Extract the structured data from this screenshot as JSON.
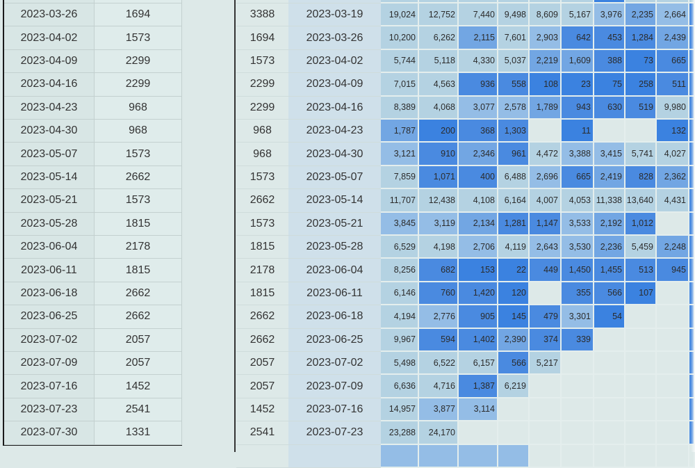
{
  "left_table": {
    "rows": [
      {
        "date": "2023-03-26",
        "value": "1694"
      },
      {
        "date": "2023-04-02",
        "value": "1573"
      },
      {
        "date": "2023-04-09",
        "value": "2299"
      },
      {
        "date": "2023-04-16",
        "value": "2299"
      },
      {
        "date": "2023-04-23",
        "value": "968"
      },
      {
        "date": "2023-04-30",
        "value": "968"
      },
      {
        "date": "2023-05-07",
        "value": "1573"
      },
      {
        "date": "2023-05-14",
        "value": "2662"
      },
      {
        "date": "2023-05-21",
        "value": "1573"
      },
      {
        "date": "2023-05-28",
        "value": "1815"
      },
      {
        "date": "2023-06-04",
        "value": "2178"
      },
      {
        "date": "2023-06-11",
        "value": "1815"
      },
      {
        "date": "2023-06-18",
        "value": "2662"
      },
      {
        "date": "2023-06-25",
        "value": "2662"
      },
      {
        "date": "2023-07-02",
        "value": "2057"
      },
      {
        "date": "2023-07-09",
        "value": "2057"
      },
      {
        "date": "2023-07-16",
        "value": "1452"
      },
      {
        "date": "2023-07-23",
        "value": "2541"
      },
      {
        "date": "2023-07-30",
        "value": "1331"
      }
    ]
  },
  "heat_colors": {
    "lightest": "#b4d2e2",
    "light": "#94bde6",
    "medium": "#72a6e3",
    "dark": "#4a8ae0",
    "darkest": "#3b82e0",
    "empty": "#dde9e8"
  },
  "right_table": {
    "rows": [
      {
        "count": "3388",
        "date": "2023-03-19",
        "cells": [
          "19,024",
          "12,752",
          "7,440",
          "9,498",
          "8,609",
          "5,167",
          "3,976",
          "2,235",
          "2,664"
        ]
      },
      {
        "count": "1694",
        "date": "2023-03-26",
        "cells": [
          "10,200",
          "6,262",
          "2,115",
          "7,601",
          "2,903",
          "642",
          "453",
          "1,284",
          "2,439"
        ]
      },
      {
        "count": "1573",
        "date": "2023-04-02",
        "cells": [
          "5,744",
          "5,118",
          "4,330",
          "5,037",
          "2,219",
          "1,609",
          "388",
          "73",
          "665"
        ]
      },
      {
        "count": "2299",
        "date": "2023-04-09",
        "cells": [
          "7,015",
          "4,563",
          "936",
          "558",
          "108",
          "23",
          "75",
          "258",
          "511"
        ]
      },
      {
        "count": "2299",
        "date": "2023-04-16",
        "cells": [
          "8,389",
          "4,068",
          "3,077",
          "2,578",
          "1,789",
          "943",
          "630",
          "519",
          "9,980"
        ]
      },
      {
        "count": "968",
        "date": "2023-04-23",
        "cells": [
          "1,787",
          "200",
          "368",
          "1,303",
          "",
          "11",
          "",
          "",
          "132"
        ]
      },
      {
        "count": "968",
        "date": "2023-04-30",
        "cells": [
          "3,121",
          "910",
          "2,346",
          "961",
          "4,472",
          "3,388",
          "3,415",
          "5,741",
          "4,027"
        ]
      },
      {
        "count": "1573",
        "date": "2023-05-07",
        "cells": [
          "7,859",
          "1,071",
          "400",
          "6,488",
          "2,696",
          "665",
          "2,419",
          "828",
          "2,362"
        ]
      },
      {
        "count": "2662",
        "date": "2023-05-14",
        "cells": [
          "11,707",
          "12,438",
          "4,108",
          "6,164",
          "4,007",
          "4,053",
          "11,338",
          "13,640",
          "4,431"
        ]
      },
      {
        "count": "1573",
        "date": "2023-05-21",
        "cells": [
          "3,845",
          "3,119",
          "2,134",
          "1,281",
          "1,147",
          "3,533",
          "2,192",
          "1,012",
          ""
        ]
      },
      {
        "count": "1815",
        "date": "2023-05-28",
        "cells": [
          "6,529",
          "4,198",
          "2,706",
          "4,119",
          "2,643",
          "3,530",
          "2,236",
          "5,459",
          "2,248"
        ]
      },
      {
        "count": "2178",
        "date": "2023-06-04",
        "cells": [
          "8,256",
          "682",
          "153",
          "22",
          "449",
          "1,450",
          "1,455",
          "513",
          "945"
        ]
      },
      {
        "count": "1815",
        "date": "2023-06-11",
        "cells": [
          "6,146",
          "760",
          "1,420",
          "120",
          "",
          "355",
          "566",
          "107",
          ""
        ]
      },
      {
        "count": "2662",
        "date": "2023-06-18",
        "cells": [
          "4,194",
          "2,776",
          "905",
          "145",
          "479",
          "3,301",
          "54",
          "",
          ""
        ]
      },
      {
        "count": "2662",
        "date": "2023-06-25",
        "cells": [
          "9,967",
          "594",
          "1,402",
          "2,390",
          "374",
          "339",
          "",
          "",
          ""
        ]
      },
      {
        "count": "2057",
        "date": "2023-07-02",
        "cells": [
          "5,498",
          "6,522",
          "6,157",
          "566",
          "5,217",
          "",
          "",
          "",
          ""
        ]
      },
      {
        "count": "2057",
        "date": "2023-07-09",
        "cells": [
          "6,636",
          "4,716",
          "1,387",
          "6,219",
          "",
          "",
          "",
          "",
          ""
        ]
      },
      {
        "count": "1452",
        "date": "2023-07-16",
        "cells": [
          "14,957",
          "3,877",
          "3,114",
          "",
          "",
          "",
          "",
          "",
          ""
        ]
      },
      {
        "count": "2541",
        "date": "2023-07-23",
        "cells": [
          "23,288",
          "24,170",
          "",
          "",
          "",
          "",
          "",
          "",
          ""
        ]
      }
    ]
  }
}
